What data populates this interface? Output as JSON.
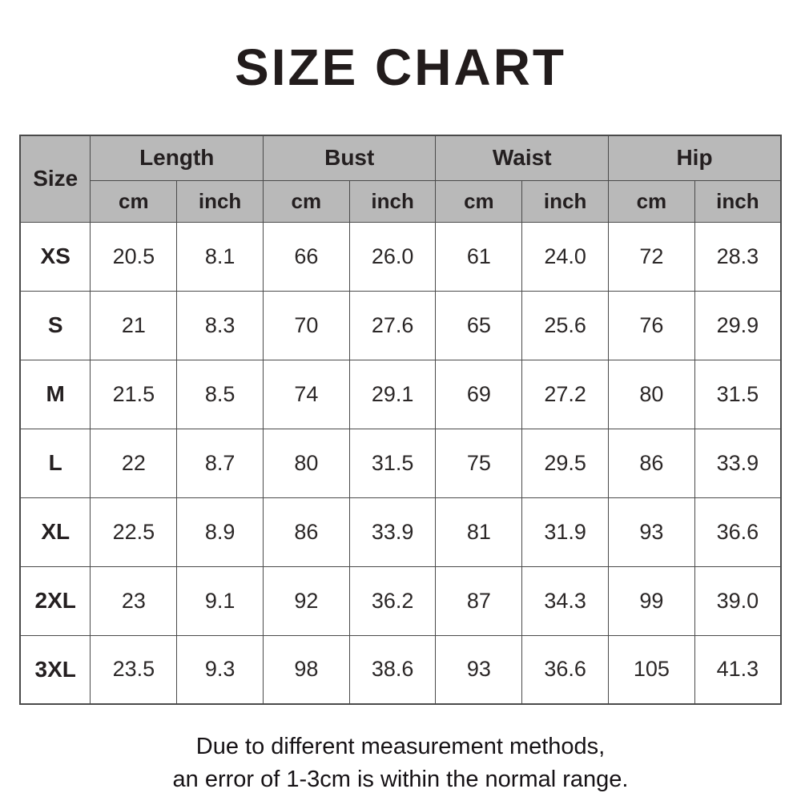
{
  "title": "SIZE CHART",
  "chart_data": {
    "type": "table",
    "title": "SIZE CHART",
    "header": {
      "size_label": "Size",
      "groups": [
        "Length",
        "Bust",
        "Waist",
        "Hip"
      ],
      "units": [
        "cm",
        "inch"
      ]
    },
    "columns": [
      "Size",
      "Length cm",
      "Length inch",
      "Bust cm",
      "Bust inch",
      "Waist cm",
      "Waist inch",
      "Hip cm",
      "Hip inch"
    ],
    "rows": [
      {
        "size": "XS",
        "values": [
          "20.5",
          "8.1",
          "66",
          "26.0",
          "61",
          "24.0",
          "72",
          "28.3"
        ]
      },
      {
        "size": "S",
        "values": [
          "21",
          "8.3",
          "70",
          "27.6",
          "65",
          "25.6",
          "76",
          "29.9"
        ]
      },
      {
        "size": "M",
        "values": [
          "21.5",
          "8.5",
          "74",
          "29.1",
          "69",
          "27.2",
          "80",
          "31.5"
        ]
      },
      {
        "size": "L",
        "values": [
          "22",
          "8.7",
          "80",
          "31.5",
          "75",
          "29.5",
          "86",
          "33.9"
        ]
      },
      {
        "size": "XL",
        "values": [
          "22.5",
          "8.9",
          "86",
          "33.9",
          "81",
          "31.9",
          "93",
          "36.6"
        ]
      },
      {
        "size": "2XL",
        "values": [
          "23",
          "9.1",
          "92",
          "36.2",
          "87",
          "34.3",
          "99",
          "39.0"
        ]
      },
      {
        "size": "3XL",
        "values": [
          "23.5",
          "9.3",
          "98",
          "38.6",
          "93",
          "36.6",
          "105",
          "41.3"
        ]
      }
    ]
  },
  "footer": {
    "line1": "Due to different measurement methods,",
    "line2": "an error of 1-3cm is within the normal range."
  },
  "colors": {
    "header_bg": "#b9b9b9",
    "border": "#4a4a4a",
    "text": "#231f20",
    "background": "#ffffff"
  }
}
